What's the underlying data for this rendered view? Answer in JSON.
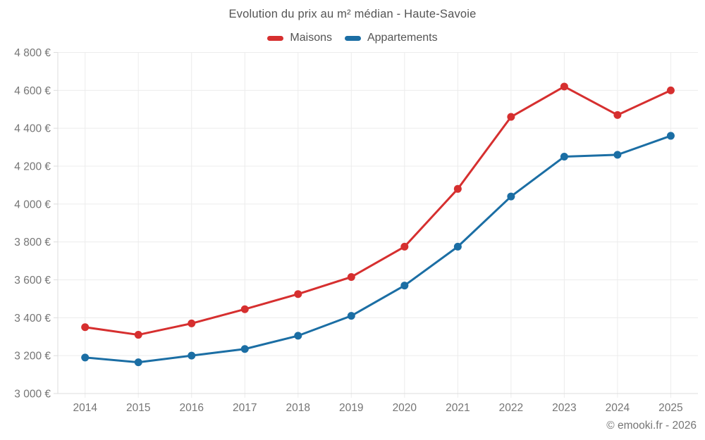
{
  "header": {
    "title": "Evolution du prix au m² médian - Haute-Savoie"
  },
  "legend": [
    {
      "label": "Maisons",
      "color": "#d62f2f"
    },
    {
      "label": "Appartements",
      "color": "#1b6ea4"
    }
  ],
  "footer": {
    "attribution": "© emooki.fr - 2026"
  },
  "colors": {
    "maisons": "#d62f2f",
    "appartements": "#1b6ea4",
    "grid": "#ececec",
    "axis": "#dddddd",
    "tick_text": "#757575",
    "title_text": "#545454"
  },
  "chart_data": {
    "type": "line",
    "title": "Evolution du prix au m² médian - Haute-Savoie",
    "x": [
      2014,
      2015,
      2016,
      2017,
      2018,
      2019,
      2020,
      2021,
      2022,
      2023,
      2024,
      2025
    ],
    "xticklabels": [
      "2014",
      "2015",
      "2016",
      "2017",
      "2018",
      "2019",
      "2020",
      "2021",
      "2022",
      "2023",
      "2024",
      "2025"
    ],
    "series": [
      {
        "name": "Maisons",
        "color": "#d62f2f",
        "values": [
          3350,
          3310,
          3370,
          3445,
          3525,
          3615,
          3775,
          4080,
          4460,
          4620,
          4470,
          4600
        ]
      },
      {
        "name": "Appartements",
        "color": "#1b6ea4",
        "values": [
          3190,
          3165,
          3200,
          3235,
          3305,
          3410,
          3570,
          3775,
          4040,
          4250,
          4260,
          4360
        ]
      }
    ],
    "ylim": [
      3000,
      4800
    ],
    "ytick_step": 200,
    "yticks": [
      3000,
      3200,
      3400,
      3600,
      3800,
      4000,
      4200,
      4400,
      4600,
      4800
    ],
    "yticklabels": [
      "3 000 €",
      "3 200 €",
      "3 400 €",
      "3 600 €",
      "3 800 €",
      "4 000 €",
      "4 200 €",
      "4 400 €",
      "4 600 €",
      "4 800 €"
    ],
    "unit": "€",
    "grid": true,
    "legend_position": "top-center"
  }
}
